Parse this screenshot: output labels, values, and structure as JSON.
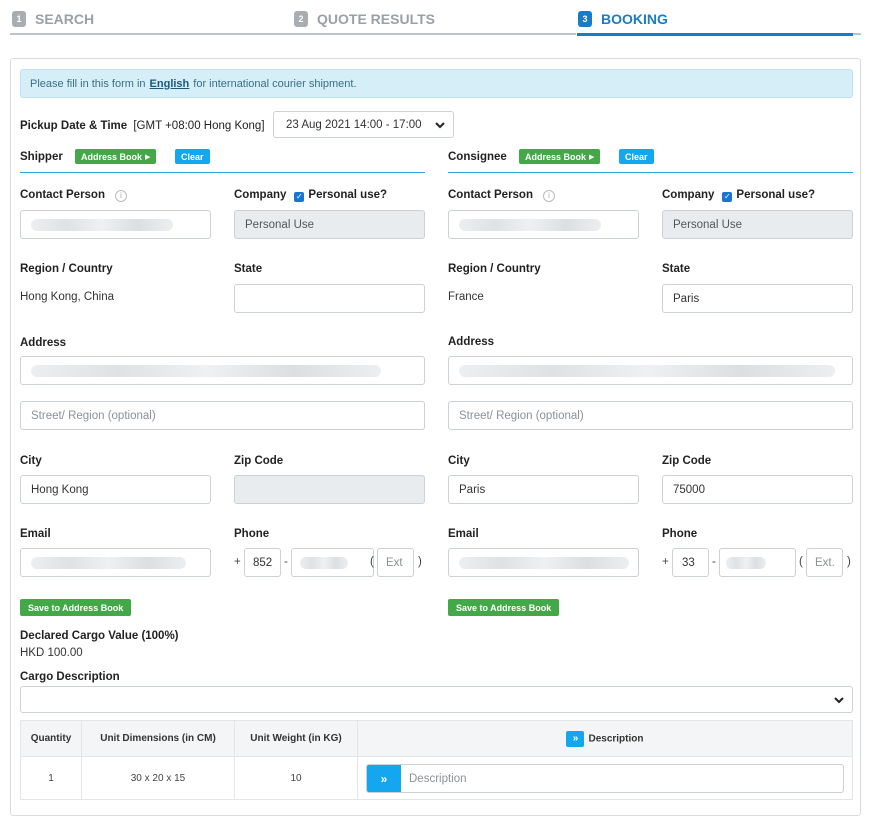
{
  "steps": [
    {
      "num": "1",
      "label": "SEARCH"
    },
    {
      "num": "2",
      "label": "QUOTE RESULTS"
    },
    {
      "num": "3",
      "label": "BOOKING"
    }
  ],
  "notice": {
    "before": "Please fill in this form in",
    "link": "English",
    "after": "for international courier shipment."
  },
  "pickup": {
    "label": "Pickup Date & Time",
    "tz": "[GMT +08:00 Hong Kong]",
    "value": "23 Aug 2021 14:00 - 17:00"
  },
  "common": {
    "address_book": "Address Book",
    "clear": "Clear",
    "contact_person": "Contact Person",
    "company": "Company",
    "personal_use": "Personal use?",
    "personal_use_value": "Personal Use",
    "region": "Region / Country",
    "state": "State",
    "address": "Address",
    "street_placeholder": "Street/ Region (optional)",
    "city": "City",
    "zip": "Zip Code",
    "email": "Email",
    "phone": "Phone",
    "plus": "+",
    "dash": "-",
    "open_paren": "(",
    "close_paren": ")",
    "save_book": "Save to Address Book"
  },
  "shipper": {
    "title": "Shipper",
    "region_value": "Hong Kong, China",
    "state_value": "",
    "city_value": "Hong Kong",
    "zip_value": "",
    "country_code": "852",
    "ext_placeholder": "Ext"
  },
  "consignee": {
    "title": "Consignee",
    "region_value": "France",
    "state_value": "Paris",
    "city_value": "Paris",
    "zip_value": "75000",
    "country_code": "33",
    "ext_placeholder": "Ext."
  },
  "cargo": {
    "declared_label": "Declared Cargo Value (100%)",
    "declared_value": "HKD 100.00",
    "description_label": "Cargo Description",
    "description_value": ""
  },
  "items_table": {
    "headers": [
      "Quantity",
      "Unit Dimensions (in CM)",
      "Unit Weight (in KG)",
      "Description"
    ],
    "rows": [
      {
        "quantity": "1",
        "dimensions": "30 x 20 x 15",
        "weight": "10",
        "description_placeholder": "Description"
      }
    ]
  },
  "colors": {
    "accent": "#1a7cc2",
    "green": "#43a848",
    "button_blue": "#15a6f0",
    "notice_bg": "#d6eef7"
  },
  "icons": {
    "info": "info-circle-icon",
    "checkbox": "checkbox-checked-icon",
    "chevron": "chevron-down-icon",
    "caret": "caret-right-icon",
    "expand": "double-chevron-down-icon",
    "go": "double-chevron-right-icon"
  }
}
